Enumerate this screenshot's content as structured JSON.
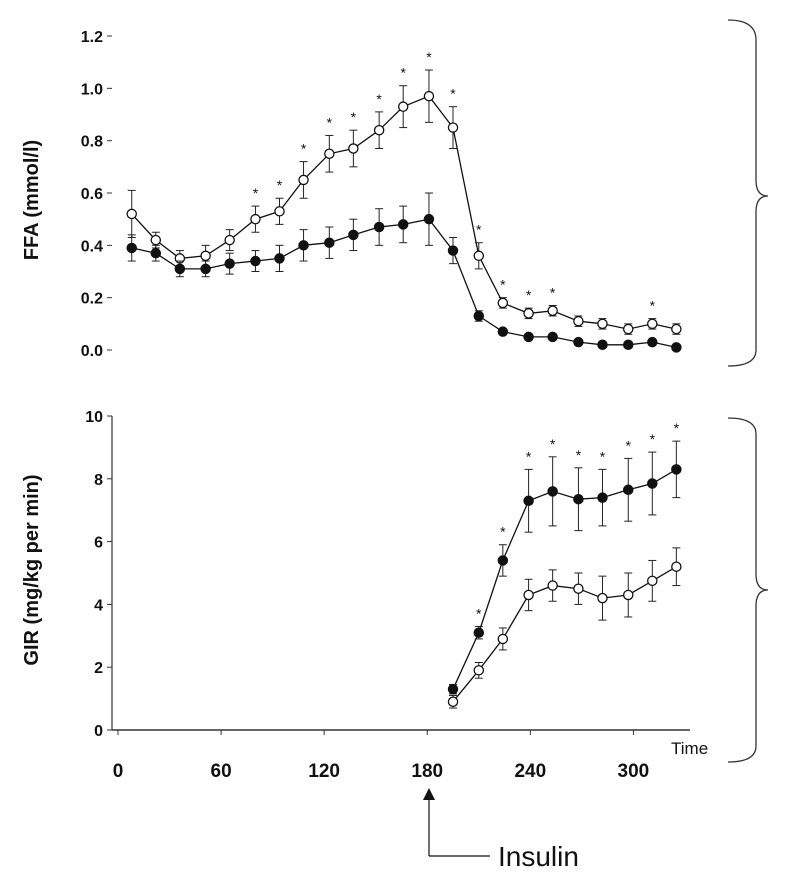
{
  "chart_data": [
    {
      "type": "line",
      "ylabel": "FFA (mmol/l)",
      "ylim": [
        0,
        1.2
      ],
      "yticks": [
        "0.0",
        "0.2",
        "0.4",
        "0.6",
        "0.8",
        "1.0",
        "1.2"
      ],
      "xlim": [
        0,
        340
      ],
      "series": [
        {
          "name": "open",
          "marker": "open-circle",
          "x": [
            8,
            22,
            36,
            51,
            65,
            80,
            94,
            108,
            123,
            137,
            152,
            166,
            181,
            195,
            210,
            224,
            239,
            253,
            268,
            282,
            297,
            311,
            325
          ],
          "values": [
            0.52,
            0.42,
            0.35,
            0.36,
            0.42,
            0.5,
            0.53,
            0.65,
            0.75,
            0.77,
            0.84,
            0.93,
            0.97,
            0.85,
            0.36,
            0.18,
            0.14,
            0.15,
            0.11,
            0.1,
            0.08,
            0.1,
            0.08
          ],
          "errors": [
            0.09,
            0.03,
            0.03,
            0.04,
            0.04,
            0.05,
            0.05,
            0.07,
            0.07,
            0.07,
            0.07,
            0.08,
            0.1,
            0.08,
            0.05,
            0.02,
            0.02,
            0.02,
            0.02,
            0.02,
            0.02,
            0.02,
            0.02
          ]
        },
        {
          "name": "filled",
          "marker": "filled-circle",
          "x": [
            8,
            22,
            36,
            51,
            65,
            80,
            94,
            108,
            123,
            137,
            152,
            166,
            181,
            195,
            210,
            224,
            239,
            253,
            268,
            282,
            297,
            311,
            325
          ],
          "values": [
            0.39,
            0.37,
            0.31,
            0.31,
            0.33,
            0.34,
            0.35,
            0.4,
            0.41,
            0.44,
            0.47,
            0.48,
            0.5,
            0.38,
            0.13,
            0.07,
            0.05,
            0.05,
            0.03,
            0.02,
            0.02,
            0.03,
            0.01
          ],
          "errors": [
            0.05,
            0.03,
            0.03,
            0.03,
            0.04,
            0.04,
            0.05,
            0.06,
            0.06,
            0.06,
            0.07,
            0.07,
            0.1,
            0.05,
            0.02,
            0.01,
            0.01,
            0.01,
            0.01,
            0.01,
            0.01,
            0.01,
            0.01
          ]
        }
      ],
      "significance_x": [
        80,
        94,
        108,
        123,
        137,
        152,
        166,
        181,
        195,
        210,
        224,
        239,
        253,
        311
      ],
      "significance_label": "*"
    },
    {
      "type": "line",
      "ylabel": "GIR (mg/kg per min)",
      "ylim": [
        0,
        10
      ],
      "yticks": [
        "0",
        "2",
        "4",
        "6",
        "8",
        "10"
      ],
      "xlim": [
        0,
        340
      ],
      "xticks": [
        "0",
        "60",
        "120",
        "180",
        "240",
        "300"
      ],
      "xlabel": "Time",
      "series": [
        {
          "name": "filled",
          "marker": "filled-circle",
          "x": [
            195,
            210,
            224,
            239,
            253,
            268,
            282,
            297,
            311,
            325
          ],
          "values": [
            1.3,
            3.1,
            5.4,
            7.3,
            7.6,
            7.35,
            7.4,
            7.65,
            7.85,
            8.3
          ],
          "errors": [
            0.15,
            0.2,
            0.5,
            1.0,
            1.1,
            1.0,
            0.9,
            1.0,
            1.0,
            0.9
          ]
        },
        {
          "name": "open",
          "marker": "open-circle",
          "x": [
            195,
            210,
            224,
            239,
            253,
            268,
            282,
            297,
            311,
            325
          ],
          "values": [
            0.9,
            1.9,
            2.9,
            4.3,
            4.6,
            4.5,
            4.2,
            4.3,
            4.75,
            5.2
          ],
          "errors": [
            0.2,
            0.25,
            0.35,
            0.5,
            0.5,
            0.5,
            0.7,
            0.7,
            0.65,
            0.6
          ]
        }
      ],
      "significance_x": [
        210,
        224,
        239,
        253,
        268,
        282,
        297,
        311,
        325
      ],
      "significance_label": "*"
    }
  ],
  "annotation": {
    "arrow_x": 180,
    "label": "Insulin"
  }
}
